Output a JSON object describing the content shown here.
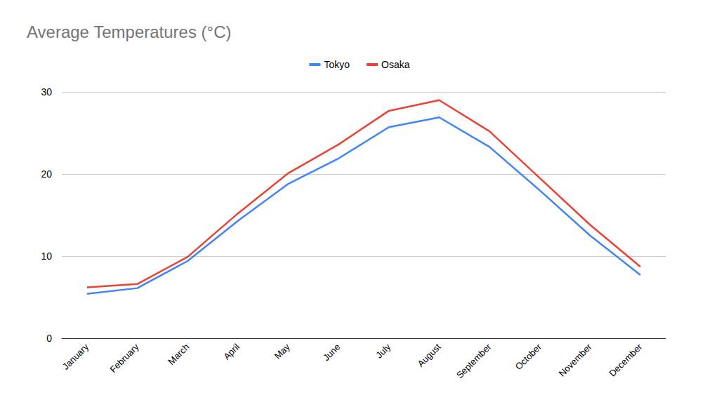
{
  "chart_data": {
    "type": "line",
    "title": "Average Temperatures (°C)",
    "categories": [
      "January",
      "February",
      "March",
      "April",
      "May",
      "June",
      "July",
      "August",
      "September",
      "October",
      "November",
      "December"
    ],
    "series": [
      {
        "name": "Tokyo",
        "color": "#4285f4",
        "values": [
          5.4,
          6.1,
          9.4,
          14.3,
          18.8,
          21.9,
          25.7,
          26.9,
          23.3,
          18.0,
          12.5,
          7.7
        ]
      },
      {
        "name": "Osaka",
        "color": "#ea4335",
        "values": [
          6.2,
          6.6,
          9.9,
          15.2,
          20.1,
          23.6,
          27.7,
          29.0,
          25.2,
          19.5,
          13.8,
          8.7
        ]
      }
    ],
    "ylim": [
      0,
      30
    ],
    "yticks": [
      0,
      10,
      20,
      30
    ],
    "grid": true,
    "legend": "top"
  }
}
